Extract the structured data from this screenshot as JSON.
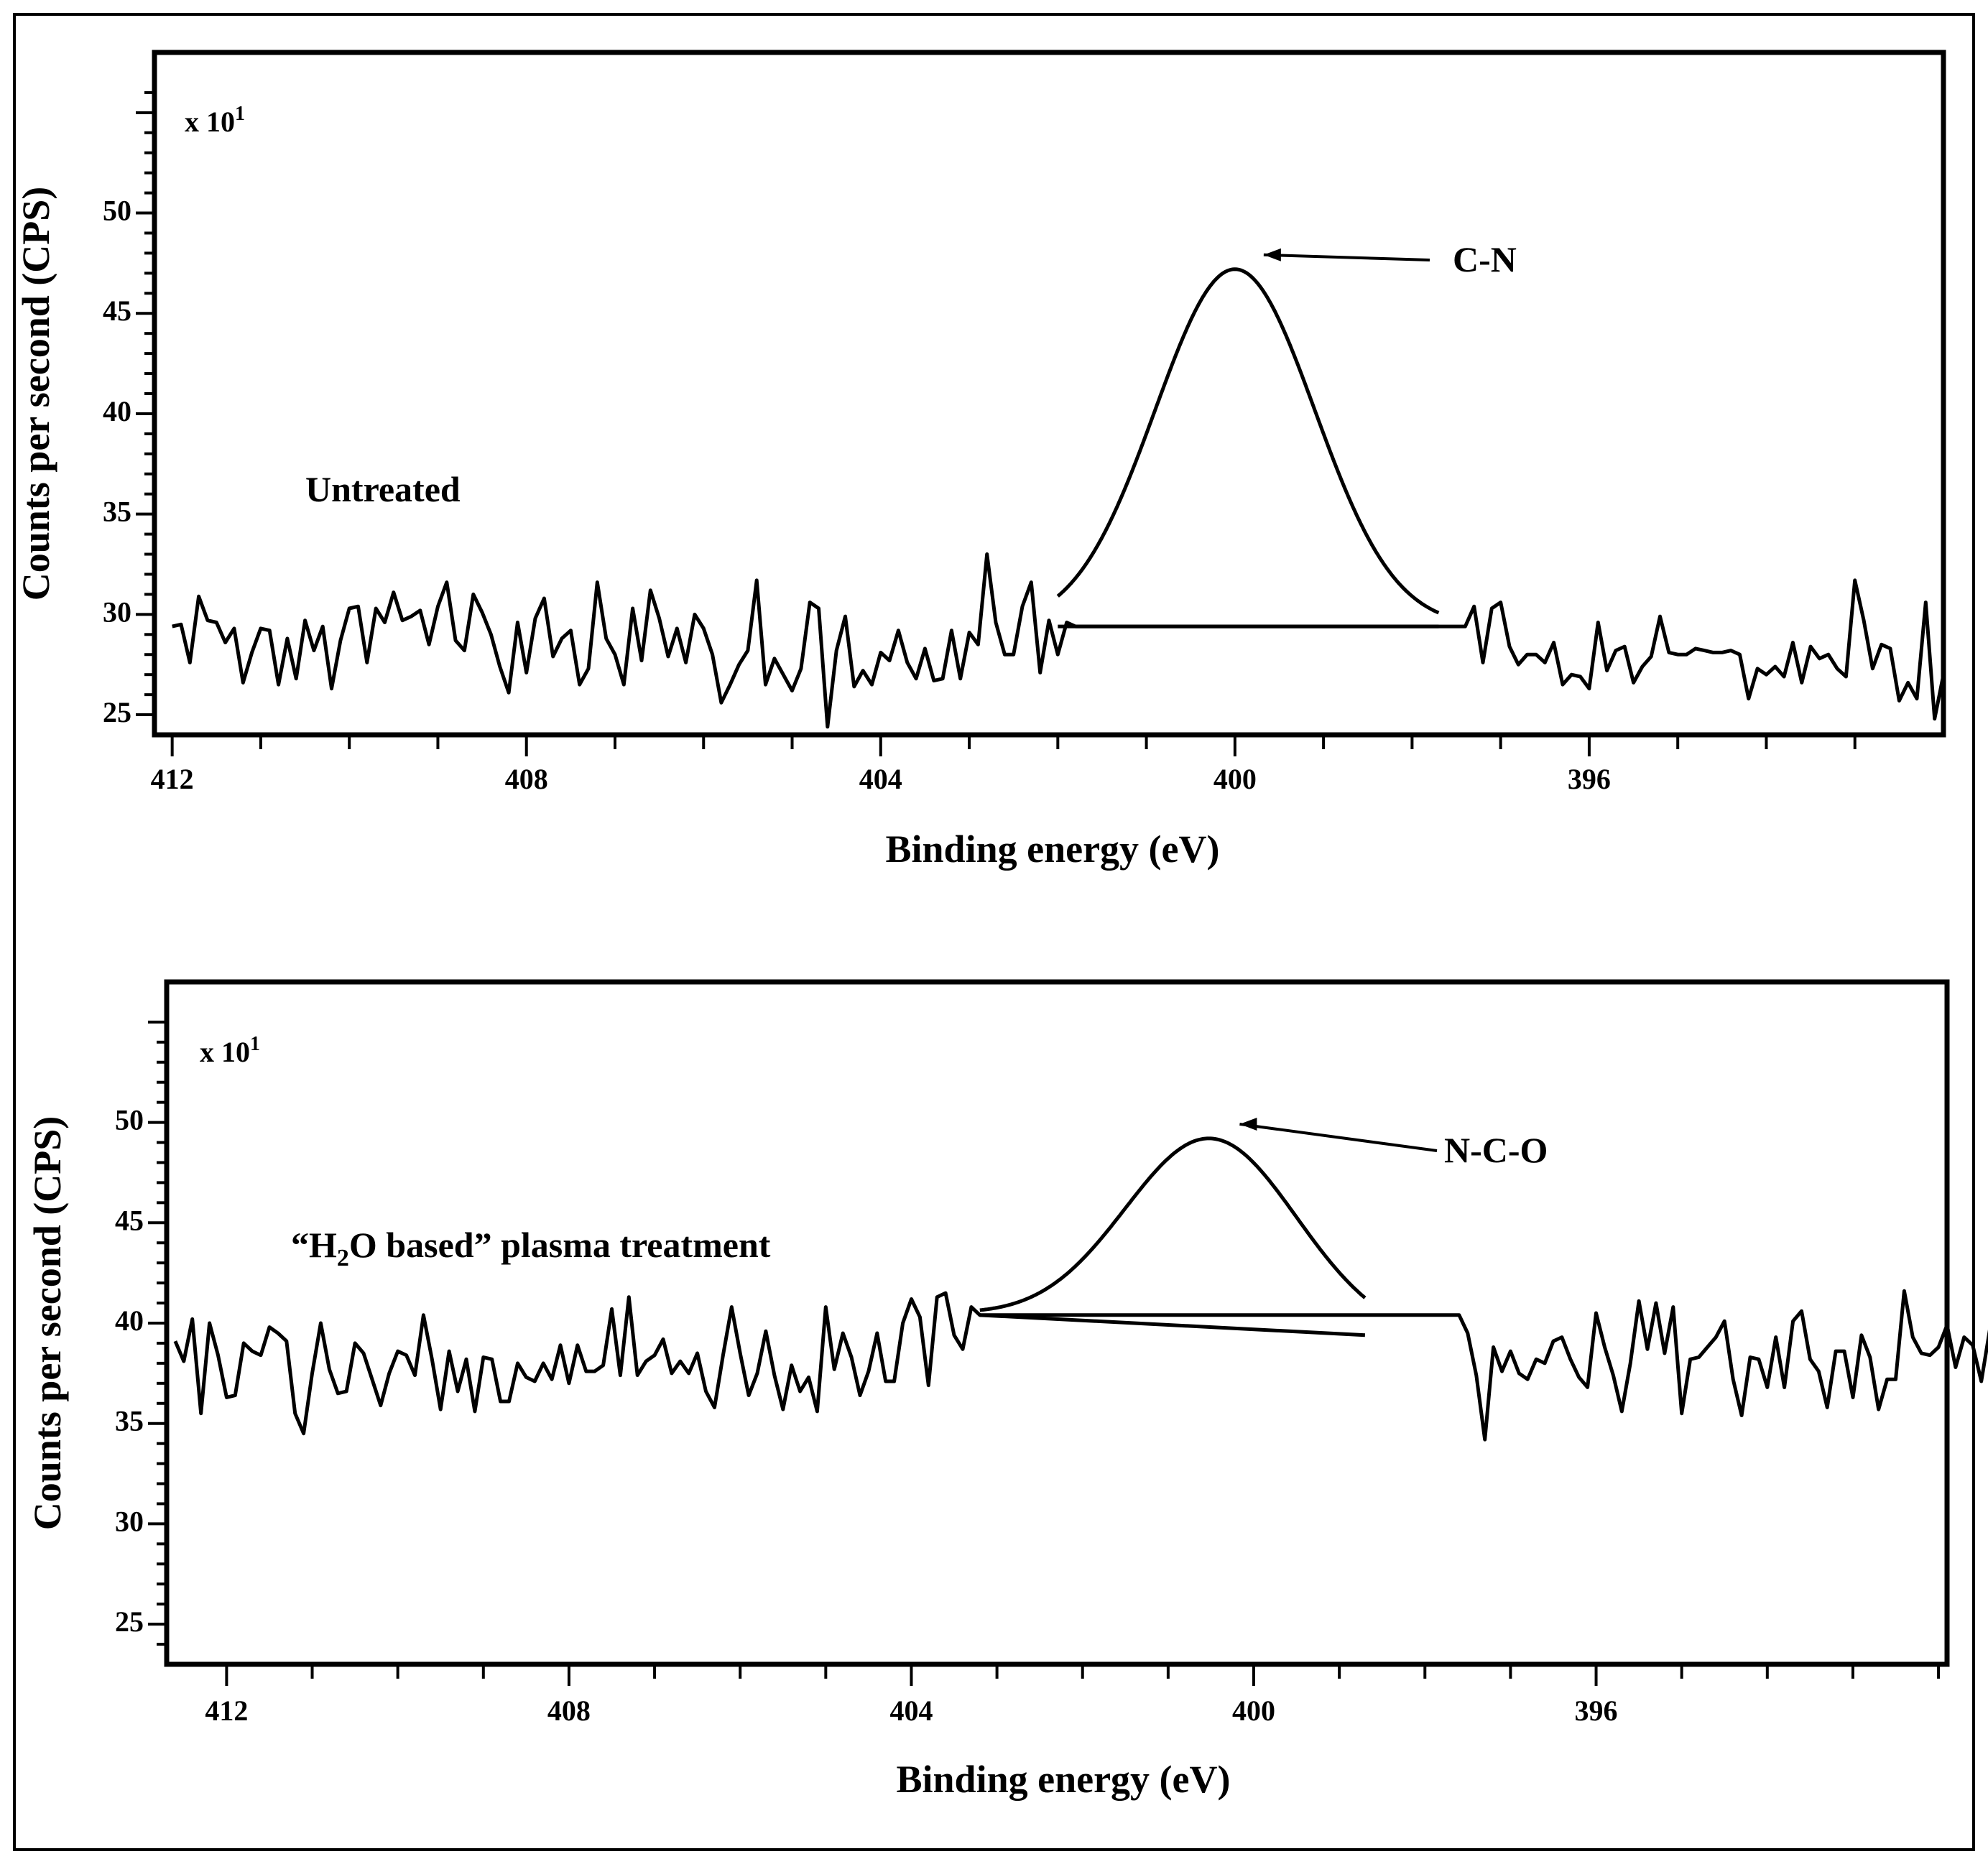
{
  "chart_data": [
    {
      "type": "line",
      "sample": "Untreated",
      "multiplier": "x 10",
      "multiplier_exp": "1",
      "xlabel": "Binding energy (eV)",
      "ylabel": "Counts per second (CPS)",
      "xlim": [
        412.2,
        392.0
      ],
      "ylim": [
        24,
        58
      ],
      "xticks": [
        412,
        408,
        404,
        400,
        396
      ],
      "yticks": [
        25,
        30,
        35,
        40,
        45,
        50
      ],
      "annotation": "C-N",
      "peak": {
        "center": 400.0,
        "height": 47.2,
        "baseline": 29.4,
        "sigma": 0.9,
        "start": 402.0,
        "end": 397.7,
        "label": "C-N"
      },
      "series": [
        {
          "name": "Untreated spectrum",
          "x_start": 412.0,
          "x_step": -0.1,
          "values": [
            29.4,
            29.5,
            27.6,
            30.9,
            29.7,
            29.6,
            28.6,
            29.3,
            26.6,
            28.1,
            29.3,
            29.2,
            26.5,
            28.8,
            26.8,
            29.7,
            28.2,
            29.4,
            26.3,
            28.7,
            30.3,
            30.4,
            27.6,
            30.3,
            29.6,
            31.1,
            29.7,
            29.9,
            30.2,
            28.5,
            30.4,
            31.6,
            28.7,
            28.2,
            31.0,
            30.1,
            29.0,
            27.4,
            26.1,
            29.6,
            27.1,
            29.8,
            30.8,
            27.9,
            28.8,
            29.2,
            26.5,
            27.3,
            31.6,
            28.8,
            28.0,
            26.5,
            30.3,
            27.7,
            31.2,
            29.8,
            27.9,
            29.3,
            27.6,
            30.0,
            29.3,
            28.0,
            25.6,
            26.5,
            27.5,
            28.2,
            31.7,
            26.5,
            27.8,
            27.0,
            26.2,
            27.3,
            30.6,
            30.3,
            24.4,
            28.2,
            29.9,
            26.4,
            27.2,
            26.5,
            28.1,
            27.7,
            29.2,
            27.6,
            26.8,
            28.3,
            26.7,
            26.8,
            29.2,
            26.8,
            29.1,
            28.5,
            33.0,
            29.6,
            28.0,
            28.0,
            30.4,
            31.6,
            27.1,
            29.7,
            28.0,
            29.6,
            29.4,
            29.4,
            29.4,
            29.4,
            29.4,
            29.4,
            29.4,
            29.4,
            29.4,
            29.4,
            29.4,
            29.4,
            29.4,
            29.4,
            29.4,
            29.4,
            29.4,
            29.4,
            29.4,
            29.4,
            29.4,
            29.4,
            29.4,
            29.4,
            29.4,
            29.4,
            29.4,
            29.4,
            29.4,
            29.4,
            29.4,
            29.4,
            29.4,
            29.4,
            29.4,
            29.4,
            29.4,
            29.4,
            29.4,
            29.4,
            29.4,
            29.4,
            29.4,
            29.4,
            29.4,
            30.4,
            27.6,
            30.3,
            30.6,
            28.4,
            27.5,
            28.0,
            28.0,
            27.6,
            28.6,
            26.5,
            27.0,
            26.9,
            26.3,
            29.6,
            27.2,
            28.2,
            28.4,
            26.6,
            27.4,
            27.9,
            29.9,
            28.1,
            28.0,
            28.0,
            28.3,
            28.2,
            28.1,
            28.1,
            28.2,
            28.0,
            25.8,
            27.3,
            27.0,
            27.4,
            26.9,
            28.6,
            26.6,
            28.4,
            27.8,
            28.0,
            27.3,
            26.9,
            31.7,
            29.7,
            27.3,
            28.5,
            28.3,
            25.7,
            26.6,
            25.8,
            30.6,
            24.8,
            27.0
          ]
        }
      ]
    },
    {
      "type": "line",
      "sample": "“H₂O based” plasma treatment",
      "sample_parts": {
        "pre": "“H",
        "sub": "2",
        "post": "O based” plasma treatment"
      },
      "multiplier": "x 10",
      "multiplier_exp": "1",
      "xlabel": "Binding energy (eV)",
      "ylabel": "Counts per second (CPS)",
      "xlim": [
        412.7,
        391.9
      ],
      "ylim": [
        23,
        57
      ],
      "xticks": [
        412,
        408,
        404,
        400,
        396
      ],
      "yticks": [
        25,
        30,
        35,
        40,
        45,
        50
      ],
      "annotation": "N-C-O",
      "peak": {
        "center": 400.5,
        "height": 49.2,
        "baseline_left": 40.4,
        "baseline_right": 39.4,
        "sigma": 1.0,
        "start": 403.2,
        "end": 398.7,
        "label": "N-C-O"
      },
      "series": [
        {
          "name": "H2O plasma treated spectrum",
          "x_start": 412.6,
          "x_step": -0.1,
          "values": [
            39.1,
            38.1,
            40.2,
            35.5,
            40.0,
            38.4,
            36.3,
            36.4,
            39.0,
            38.6,
            38.4,
            39.8,
            39.5,
            39.1,
            35.5,
            34.5,
            37.5,
            40.0,
            37.7,
            36.5,
            36.6,
            39.0,
            38.5,
            37.2,
            35.9,
            37.5,
            38.6,
            38.4,
            37.4,
            40.4,
            38.2,
            35.7,
            38.6,
            36.6,
            38.2,
            35.6,
            38.3,
            38.2,
            36.1,
            36.1,
            38.0,
            37.3,
            37.1,
            38.0,
            37.2,
            38.9,
            37.0,
            38.9,
            37.6,
            37.6,
            37.9,
            40.7,
            37.4,
            41.3,
            37.4,
            38.1,
            38.4,
            39.2,
            37.5,
            38.1,
            37.5,
            38.5,
            36.6,
            35.8,
            38.4,
            40.8,
            38.5,
            36.4,
            37.5,
            39.6,
            37.4,
            35.7,
            37.9,
            36.6,
            37.3,
            35.6,
            40.8,
            37.7,
            39.5,
            38.3,
            36.4,
            37.6,
            39.5,
            37.1,
            37.1,
            40.0,
            41.2,
            40.3,
            36.9,
            41.3,
            41.5,
            39.4,
            38.7,
            40.8,
            40.4,
            40.4,
            40.4,
            40.4,
            40.4,
            40.4,
            40.4,
            40.4,
            40.4,
            40.4,
            40.4,
            40.4,
            40.4,
            40.4,
            40.4,
            40.4,
            40.4,
            40.4,
            40.4,
            40.4,
            40.4,
            40.4,
            40.4,
            40.4,
            40.4,
            40.4,
            40.4,
            40.4,
            40.4,
            40.4,
            40.4,
            40.4,
            40.4,
            40.4,
            40.4,
            40.4,
            40.4,
            40.4,
            40.4,
            40.4,
            40.4,
            40.4,
            40.4,
            40.4,
            40.4,
            40.4,
            40.4,
            40.4,
            40.4,
            40.4,
            40.4,
            40.4,
            40.4,
            40.4,
            40.4,
            40.4,
            40.4,
            39.5,
            37.4,
            34.2,
            38.8,
            37.6,
            38.6,
            37.5,
            37.2,
            38.2,
            38.0,
            39.1,
            39.3,
            38.2,
            37.3,
            36.8,
            40.5,
            38.8,
            37.4,
            35.6,
            38.0,
            41.1,
            38.7,
            41.0,
            38.5,
            40.8,
            35.5,
            38.2,
            38.3,
            38.8,
            39.3,
            40.1,
            37.2,
            35.4,
            38.3,
            38.2,
            36.8,
            39.3,
            36.8,
            40.1,
            40.6,
            38.2,
            37.6,
            35.8,
            38.6,
            38.6,
            36.3,
            39.4,
            38.3,
            35.7,
            37.2,
            37.2,
            41.6,
            39.3,
            38.5,
            38.4,
            38.8,
            39.9,
            37.8,
            39.3,
            38.9,
            37.1,
            39.7
          ]
        }
      ]
    }
  ]
}
